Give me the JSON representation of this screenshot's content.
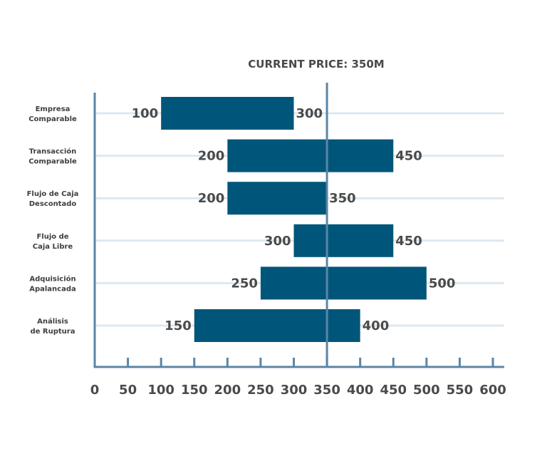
{
  "chart_data": {
    "type": "bar",
    "orientation": "horizontal-range",
    "title": "CURRENT PRICE: 350M",
    "reference_line": 350,
    "xlim": [
      0,
      600
    ],
    "x_ticks": [
      0,
      50,
      100,
      150,
      200,
      250,
      300,
      350,
      400,
      450,
      500,
      550,
      600
    ],
    "categories": [
      [
        "Empresa",
        "Comparable"
      ],
      [
        "Transacción",
        "Comparable"
      ],
      [
        "Flujo de Caja",
        "Descontado"
      ],
      [
        "Flujo de",
        "Caja Libre"
      ],
      [
        "Adquisición",
        "Apalancada"
      ],
      [
        "Análisis",
        "de Ruptura"
      ]
    ],
    "series": [
      {
        "low": 100,
        "high": 300
      },
      {
        "low": 200,
        "high": 450
      },
      {
        "low": 200,
        "high": 350
      },
      {
        "low": 300,
        "high": 450
      },
      {
        "low": 250,
        "high": 500
      },
      {
        "low": 150,
        "high": 400
      }
    ],
    "colors": {
      "bar": "#00567a",
      "axis": "#5b86a6",
      "gridline": "#dde8f0",
      "text": "#4a4a4a"
    }
  }
}
